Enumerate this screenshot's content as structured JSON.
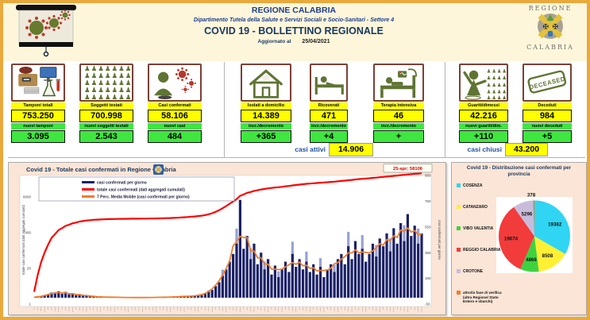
{
  "header": {
    "region_title": "REGIONE CALABRIA",
    "department_line": "Dipartimento Tutela della Salute e Servizi Sociali e Socio-Sanitari - Settore 4",
    "bulletin_title": "COVID 19 - BOLLETTINO REGIONALE",
    "updated_label": "Aggiornato al",
    "updated_date": "25/04/2021",
    "logo_top": "REGIONE",
    "logo_bottom": "CALABRIA"
  },
  "cards": [
    {
      "label": "Tamponi totali",
      "value": "753.250",
      "sub_label": "nuovi tamponi",
      "sub_value": "3.095",
      "icon": "lab-equipment-icon"
    },
    {
      "label": "Soggetti testati",
      "value": "700.998",
      "sub_label": "nuovi soggetti testati",
      "sub_value": "2.543",
      "icon": "people-grid-icon"
    },
    {
      "label": "Casi confermati",
      "value": "58.106",
      "sub_label": "nuovi casi",
      "sub_value": "484",
      "icon": "infected-person-icon"
    },
    {
      "label": "Isolati a domicilio",
      "value": "14.389",
      "sub_label": "incr./decremento",
      "sub_value": "+365",
      "icon": "house-icon"
    },
    {
      "label": "Ricoverati",
      "value": "471",
      "sub_label": "incr./decremento",
      "sub_value": "+4",
      "icon": "hospital-bed-icon"
    },
    {
      "label": "Terapia intensiva",
      "value": "46",
      "sub_label": "incr./decremento",
      "sub_value": "+",
      "icon": "icu-bed-icon"
    },
    {
      "label": "Guariti/dimessi",
      "value": "42.216",
      "sub_label": "nuovi guariti/dim.",
      "sub_value": "+110",
      "icon": "recovered-person-icon"
    },
    {
      "label": "Deceduti",
      "value": "984",
      "sub_label": "nuovi deceduti",
      "sub_value": "+5",
      "icon": "deceased-stamp-icon",
      "icon_text": "DECEASED"
    }
  ],
  "summary": {
    "casi_attivi_label": "casi attivi",
    "casi_attivi_value": "14.906",
    "casi_chiusi_label": "casi chiusi",
    "casi_chiusi_value": "43.200"
  },
  "chart_data": [
    {
      "type": "bar",
      "title": "Covid 19 - Totale casi confermati in Regione Calabria",
      "legend": [
        "casi confermati per giorno",
        "totale casi confermati (dati aggregati cumulati)",
        "7 Perc. Media Mobile (casi confermati per giorno)"
      ],
      "annotation": "25-apr; 58106",
      "x_range": [
        "feb-2020",
        "25-apr-2021"
      ],
      "left_axis": {
        "label": "totale casi confermati (dati aggregati cumulati)",
        "scale": "log",
        "ticks": [
          1,
          20,
          400,
          8000
        ]
      },
      "right_axis": {
        "label": "casi confermati per giorno",
        "scale": "linear",
        "ticks": [
          -50,
          150,
          350,
          550,
          750,
          950
        ]
      },
      "total_final": 58106,
      "daily": [
        1,
        3,
        8,
        15,
        25,
        40,
        35,
        50,
        30,
        45,
        25,
        35,
        20,
        28,
        15,
        20,
        10,
        12,
        8,
        5,
        6,
        4,
        3,
        5,
        2,
        3,
        1,
        2,
        2,
        1,
        1,
        2,
        1,
        1,
        2,
        3,
        2,
        4,
        5,
        3,
        6,
        8,
        10,
        9,
        12,
        14,
        12,
        16,
        20,
        30,
        45,
        60,
        90,
        120,
        170,
        220,
        280,
        340,
        420,
        760,
        380,
        480,
        300,
        420,
        260,
        350,
        220,
        300,
        180,
        250,
        160,
        220,
        280,
        200,
        340,
        240,
        300,
        220,
        280,
        200,
        260,
        180,
        240,
        160,
        220,
        260,
        200,
        300,
        340,
        260,
        400,
        300,
        440,
        340,
        380,
        280,
        340,
        420,
        320,
        460,
        400,
        500,
        360,
        540,
        420,
        580,
        440,
        650,
        480,
        560,
        420,
        500
      ],
      "series_colors": {
        "daily_bars": "#1B2166",
        "cumulative_line": "#FF0000",
        "moving_average_line": "#ED7D31"
      }
    },
    {
      "type": "pie",
      "title": "Covid 19 - Distribuzione casi confermati per provincia",
      "labels": [
        "COSENZA",
        "CATANZARO",
        "VIBO VALENTIA",
        "REGGIO CALABRIA",
        "CROTONE",
        "altro/in fase di verifica (altra Regione/ Stato Estero e sbarchi)"
      ],
      "values": [
        19382,
        8508,
        4868,
        19674,
        5296,
        378
      ],
      "colors": [
        "#2FD5F2",
        "#FFF033",
        "#3FD23F",
        "#F23B3B",
        "#C9BCDA",
        "#ED7D31"
      ],
      "legend_position": "left"
    }
  ],
  "colors": {
    "border_gold": "#E9A93C",
    "header_cream": "#FDF6DA",
    "panel_peach": "#FBE5D6",
    "accent_yellow": "#FFFF00",
    "accent_green": "#3FE63F",
    "navy": "#17375E",
    "olive": "#5F7433",
    "brick_border": "#7B4036"
  }
}
